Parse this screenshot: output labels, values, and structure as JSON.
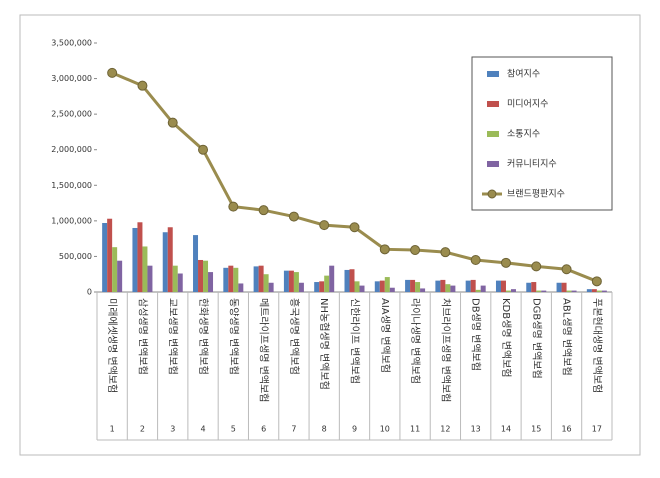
{
  "chart_data": {
    "type": "bar",
    "categories": [
      "미래에셋생명 변액보험",
      "삼성생명 변액보험",
      "교보생명 변액보험",
      "한화생명 변액보험",
      "동양생명 변액보험",
      "메트라이프생명 변액보험",
      "흥국생명 변액보험",
      "NH농협생명 변액보험",
      "신한라이프 변액보험",
      "AIA생명 변액보험",
      "라이나생명 변액보험",
      "처브라이프생명 변액보험",
      "DB생명 변액보험",
      "KDB생명 변액보험",
      "DGB생명 변액보험",
      "ABL생명 변액보험",
      "푸본현대생명 변액보험"
    ],
    "ranks": [
      1,
      2,
      3,
      4,
      5,
      6,
      7,
      8,
      9,
      10,
      11,
      12,
      13,
      14,
      15,
      16,
      17
    ],
    "series": [
      {
        "name": "참여지수",
        "color": "#4f81bd",
        "values": [
          970000,
          900000,
          840000,
          800000,
          340000,
          360000,
          300000,
          140000,
          310000,
          150000,
          170000,
          160000,
          160000,
          160000,
          130000,
          130000,
          40000
        ]
      },
      {
        "name": "미디어지수",
        "color": "#c0504d",
        "values": [
          1030000,
          980000,
          910000,
          450000,
          370000,
          370000,
          300000,
          150000,
          320000,
          160000,
          170000,
          170000,
          170000,
          160000,
          140000,
          130000,
          40000
        ]
      },
      {
        "name": "소통지수",
        "color": "#9bbb59",
        "values": [
          630000,
          640000,
          370000,
          440000,
          340000,
          250000,
          280000,
          230000,
          150000,
          210000,
          140000,
          110000,
          30000,
          20000,
          20000,
          20000,
          20000
        ]
      },
      {
        "name": "커뮤니티지수",
        "color": "#8064a2",
        "values": [
          440000,
          370000,
          260000,
          280000,
          120000,
          130000,
          130000,
          370000,
          90000,
          60000,
          50000,
          90000,
          90000,
          40000,
          20000,
          20000,
          20000
        ]
      },
      {
        "name": "브랜드평판지수",
        "color": "#9a8c4e",
        "type": "line",
        "values": [
          3080000,
          2900000,
          2380000,
          2000000,
          1200000,
          1150000,
          1060000,
          940000,
          910000,
          600000,
          590000,
          560000,
          450000,
          410000,
          360000,
          320000,
          150000
        ]
      }
    ],
    "ylim": [
      0,
      3500000
    ],
    "yticks": [
      0,
      {
        "value": 500000,
        "label": "500,000"
      },
      {
        "value": 1000000,
        "label": "1,000,000"
      },
      {
        "value": 1500000,
        "label": "1,500,000"
      },
      {
        "value": 2000000,
        "label": "2,000,000"
      },
      {
        "value": 2500000,
        "label": "2,500,000"
      },
      {
        "value": 3000000,
        "label": "3,000,000"
      },
      {
        "value": 3500000,
        "label": "3,500,000"
      }
    ],
    "legend": "upper right",
    "grid": false
  }
}
